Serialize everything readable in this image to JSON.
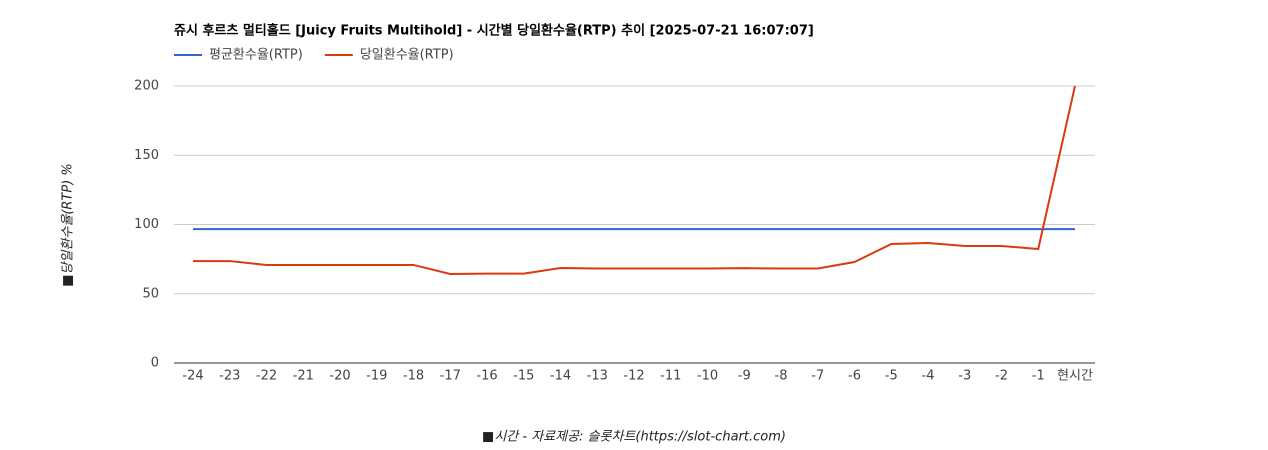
{
  "chart_data": {
    "type": "line",
    "title": "쥬시 후르츠 멀티홀드 [Juicy Fruits Multihold] - 시간별 당일환수율(RTP) 추이 [2025-07-21 16:07:07]",
    "x_label": "■시간 - 자료제공: 슬롯차트(https://slot-chart.com)",
    "y_label": "■당일환수율(RTP) %",
    "categories": [
      "-24",
      "-23",
      "-22",
      "-21",
      "-20",
      "-19",
      "-18",
      "-17",
      "-16",
      "-15",
      "-14",
      "-13",
      "-12",
      "-11",
      "-10",
      "-9",
      "-8",
      "-7",
      "-6",
      "-5",
      "-4",
      "-3",
      "-2",
      "-1",
      "현시간"
    ],
    "series": [
      {
        "name": "평균환수율(RTP)",
        "color": "#3366cc",
        "values": [
          96.7,
          96.7,
          96.7,
          96.7,
          96.7,
          96.7,
          96.7,
          96.7,
          96.7,
          96.7,
          96.7,
          96.7,
          96.7,
          96.7,
          96.7,
          96.7,
          96.7,
          96.7,
          96.7,
          96.7,
          96.7,
          96.7,
          96.7,
          96.7,
          96.7
        ]
      },
      {
        "name": "당일환수율(RTP)",
        "color": "#dc3912",
        "values": [
          73.6,
          73.6,
          70.8,
          70.8,
          70.8,
          70.8,
          70.8,
          64.3,
          64.5,
          64.5,
          68.6,
          68.2,
          68.2,
          68.2,
          68.2,
          68.5,
          68.2,
          68.2,
          72.9,
          85.9,
          86.6,
          84.5,
          84.5,
          82.3,
          200
        ]
      }
    ],
    "ylim": [
      0,
      200
    ],
    "yticks": [
      0,
      50,
      100,
      150,
      200
    ],
    "grid": true,
    "legend": "top-left"
  }
}
